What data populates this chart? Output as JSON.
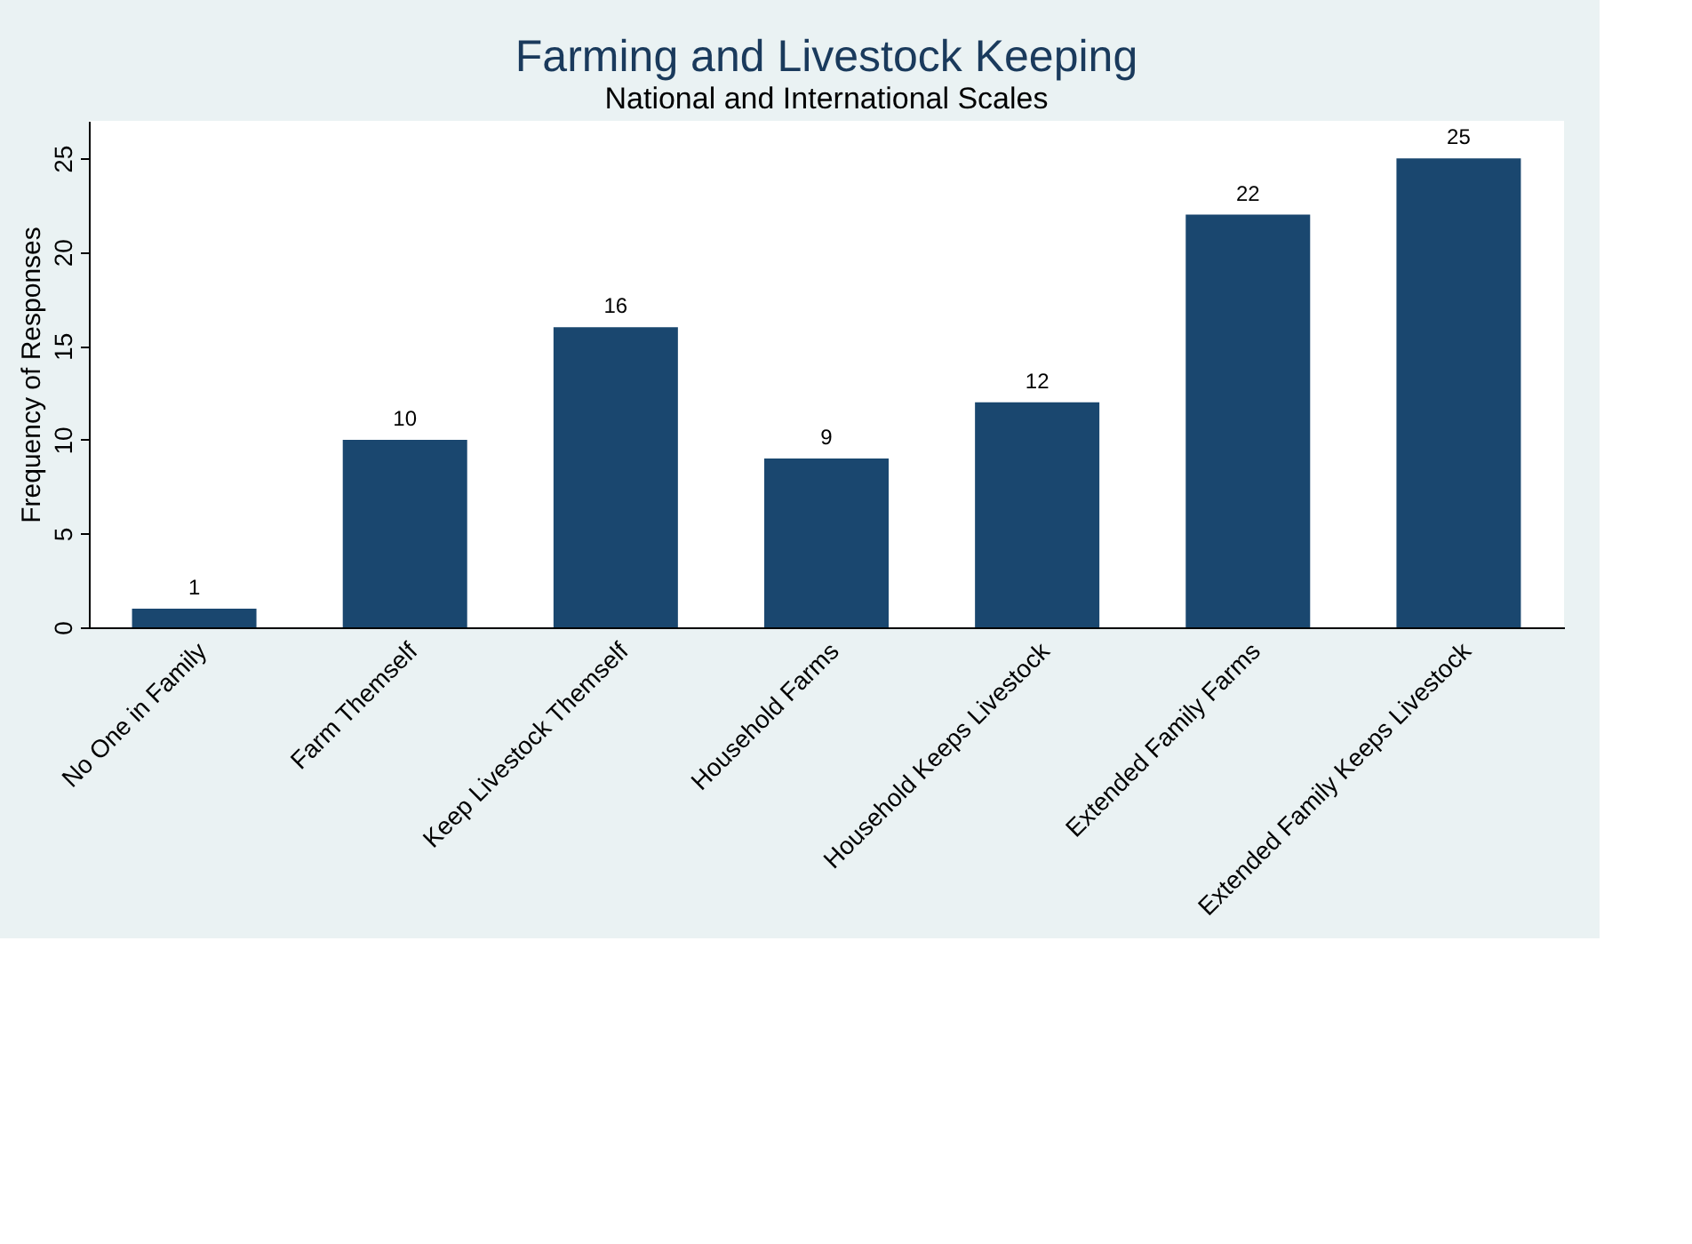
{
  "chart_data": {
    "type": "bar",
    "title": "Farming and Livestock Keeping",
    "subtitle": "National and International Scales",
    "ylabel": "Frequency of Responses",
    "categories": [
      "No One in Family",
      "Farm Themself",
      "Keep Livestock Themself",
      "Household Farms",
      "Household Keeps Livestock",
      "Extended Family Farms",
      "Extended Family Keeps Livestock"
    ],
    "values": [
      1,
      10,
      16,
      9,
      12,
      22,
      25
    ],
    "color": "#1a476f",
    "ylim": [
      0,
      27
    ],
    "yticks": [
      0,
      5,
      10,
      15,
      20,
      25
    ],
    "grid": false,
    "data_labels": true
  }
}
